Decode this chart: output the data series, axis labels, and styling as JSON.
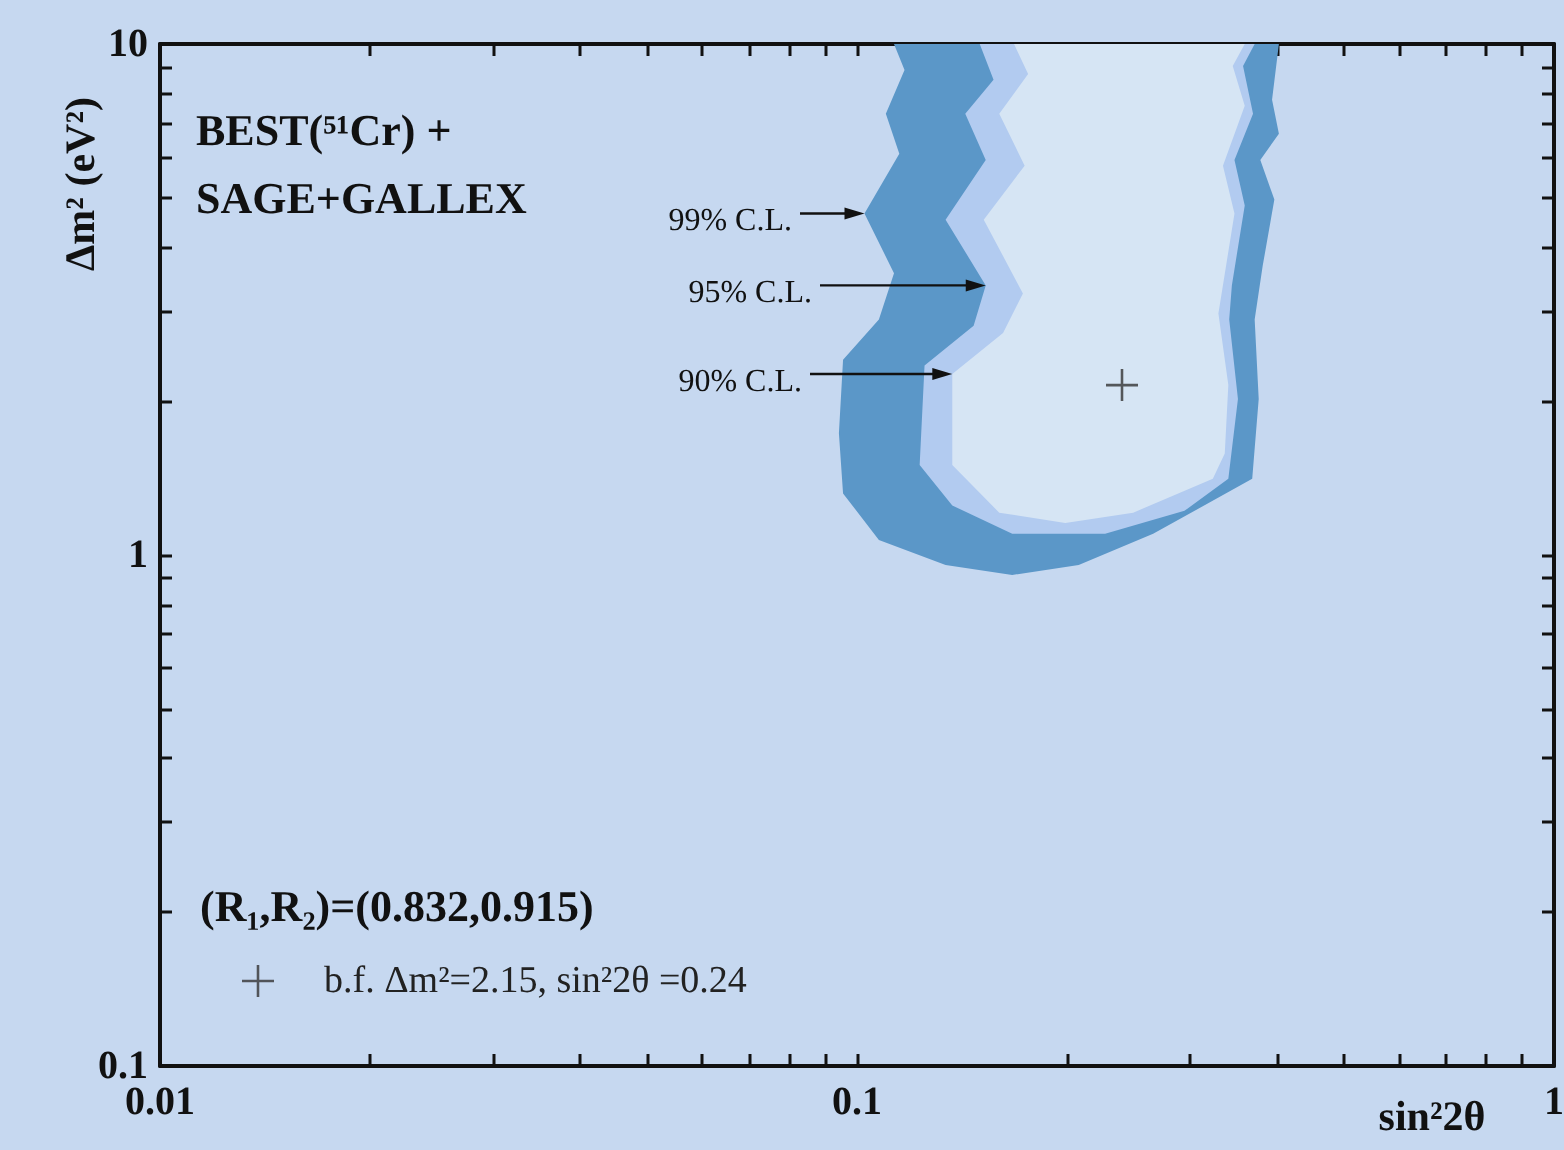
{
  "chart_data": {
    "type": "area",
    "xlabel": "sin²2θ",
    "ylabel": "Δm² (eV²)",
    "log": "xy",
    "grid": false,
    "legend": "bottom left",
    "xlim": [
      0.01,
      1
    ],
    "ylim": [
      0.1,
      10
    ],
    "xticks": [
      0.01,
      {
        "value": 0.02,
        "label": null
      },
      {
        "value": 0.03,
        "label": null
      },
      {
        "value": 0.04,
        "label": null
      },
      {
        "value": 0.05,
        "label": null
      },
      {
        "value": 0.06,
        "label": null
      },
      {
        "value": 0.07,
        "label": null
      },
      {
        "value": 0.08,
        "label": null
      },
      {
        "value": 0.09,
        "label": null
      },
      0.1,
      {
        "value": 0.2,
        "label": null
      },
      {
        "value": 0.3,
        "label": null
      },
      {
        "value": 0.4,
        "label": null
      },
      {
        "value": 0.5,
        "label": null
      },
      {
        "value": 0.6,
        "label": null
      },
      {
        "value": 0.7,
        "label": null
      },
      {
        "value": 0.8,
        "label": null
      },
      {
        "value": 0.9,
        "label": null
      },
      1
    ],
    "yticks": [
      0.1,
      {
        "value": 0.2,
        "label": null
      },
      {
        "value": 0.3,
        "label": null
      },
      {
        "value": 0.4,
        "label": null
      },
      {
        "value": 0.5,
        "label": null
      },
      {
        "value": 0.6,
        "label": null
      },
      {
        "value": 0.7,
        "label": null
      },
      {
        "value": 0.8,
        "label": null
      },
      {
        "value": 0.9,
        "label": null
      },
      1,
      {
        "value": 2,
        "label": null
      },
      {
        "value": 3,
        "label": null
      },
      {
        "value": 4,
        "label": null
      },
      {
        "value": 5,
        "label": null
      },
      {
        "value": 6,
        "label": null
      },
      {
        "value": 7,
        "label": null
      },
      {
        "value": 8,
        "label": null
      },
      {
        "value": 9,
        "label": null
      },
      10
    ],
    "series": [
      {
        "color": "#5b97c8",
        "x": [
          0.113,
          0.117,
          0.11,
          0.115,
          0.1025,
          0.113,
          0.1075,
          0.0955,
          0.0942,
          0.0955,
          0.1075,
          0.134,
          0.167,
          0.208,
          0.266,
          0.369,
          0.377,
          0.372,
          0.382,
          0.397,
          0.379,
          0.403,
          0.394,
          0.403
        ],
        "values": [
          10,
          8.89,
          7.3,
          6.1,
          4.66,
          3.56,
          2.89,
          2.41,
          1.73,
          1.32,
          1.07,
          0.956,
          0.914,
          0.956,
          1.1,
          1.41,
          2.02,
          2.89,
          3.68,
          4.96,
          5.93,
          6.67,
          7.78,
          10
        ]
      },
      {
        "color": "#b2cbf0",
        "x": [
          0.15,
          0.157,
          0.143,
          0.153,
          0.134,
          0.153,
          0.147,
          0.125,
          0.123,
          0.137,
          0.167,
          0.227,
          0.295,
          0.341,
          0.352,
          0.342,
          0.345,
          0.36,
          0.348,
          0.37,
          0.358,
          0.372
        ],
        "values": [
          10,
          8.51,
          7.3,
          5.93,
          4.53,
          3.37,
          2.81,
          2.35,
          1.5,
          1.25,
          1.1,
          1.1,
          1.22,
          1.41,
          2.02,
          2.89,
          3.37,
          4.83,
          5.93,
          7.3,
          9.06,
          10
        ]
      },
      {
        "color": "#d6e5f4",
        "x": [
          0.168,
          0.176,
          0.16,
          0.174,
          0.152,
          0.173,
          0.162,
          0.137,
          0.137,
          0.16,
          0.199,
          0.249,
          0.324,
          0.337,
          0.341,
          0.33,
          0.348,
          0.335,
          0.36,
          0.346,
          0.36
        ],
        "values": [
          10,
          8.74,
          7.3,
          5.78,
          4.53,
          3.25,
          2.72,
          2.26,
          1.5,
          1.21,
          1.155,
          1.21,
          1.41,
          1.58,
          2.15,
          2.97,
          4.66,
          5.78,
          7.57,
          9.06,
          10
        ]
      },
      {
        "type": "scatter",
        "name": "b.f. Δm²=2.15, sin²2θ =0.24",
        "color": "#333333",
        "marker": "cross",
        "x": [
          0.24
        ],
        "values": [
          2.15
        ]
      }
    ],
    "annotations": [
      "BEST(⁵¹Cr) +\nSAGE+GALLEX",
      "(R₁,R₂)=(0.832,0.915)",
      {
        "text": "99% C.L.",
        "x": 0.1025,
        "y": 4.66
      },
      {
        "text": "95% C.L.",
        "x": 0.153,
        "y": 3.37
      },
      {
        "text": "90% C.L.",
        "x": 0.137,
        "y": 2.26
      }
    ]
  }
}
